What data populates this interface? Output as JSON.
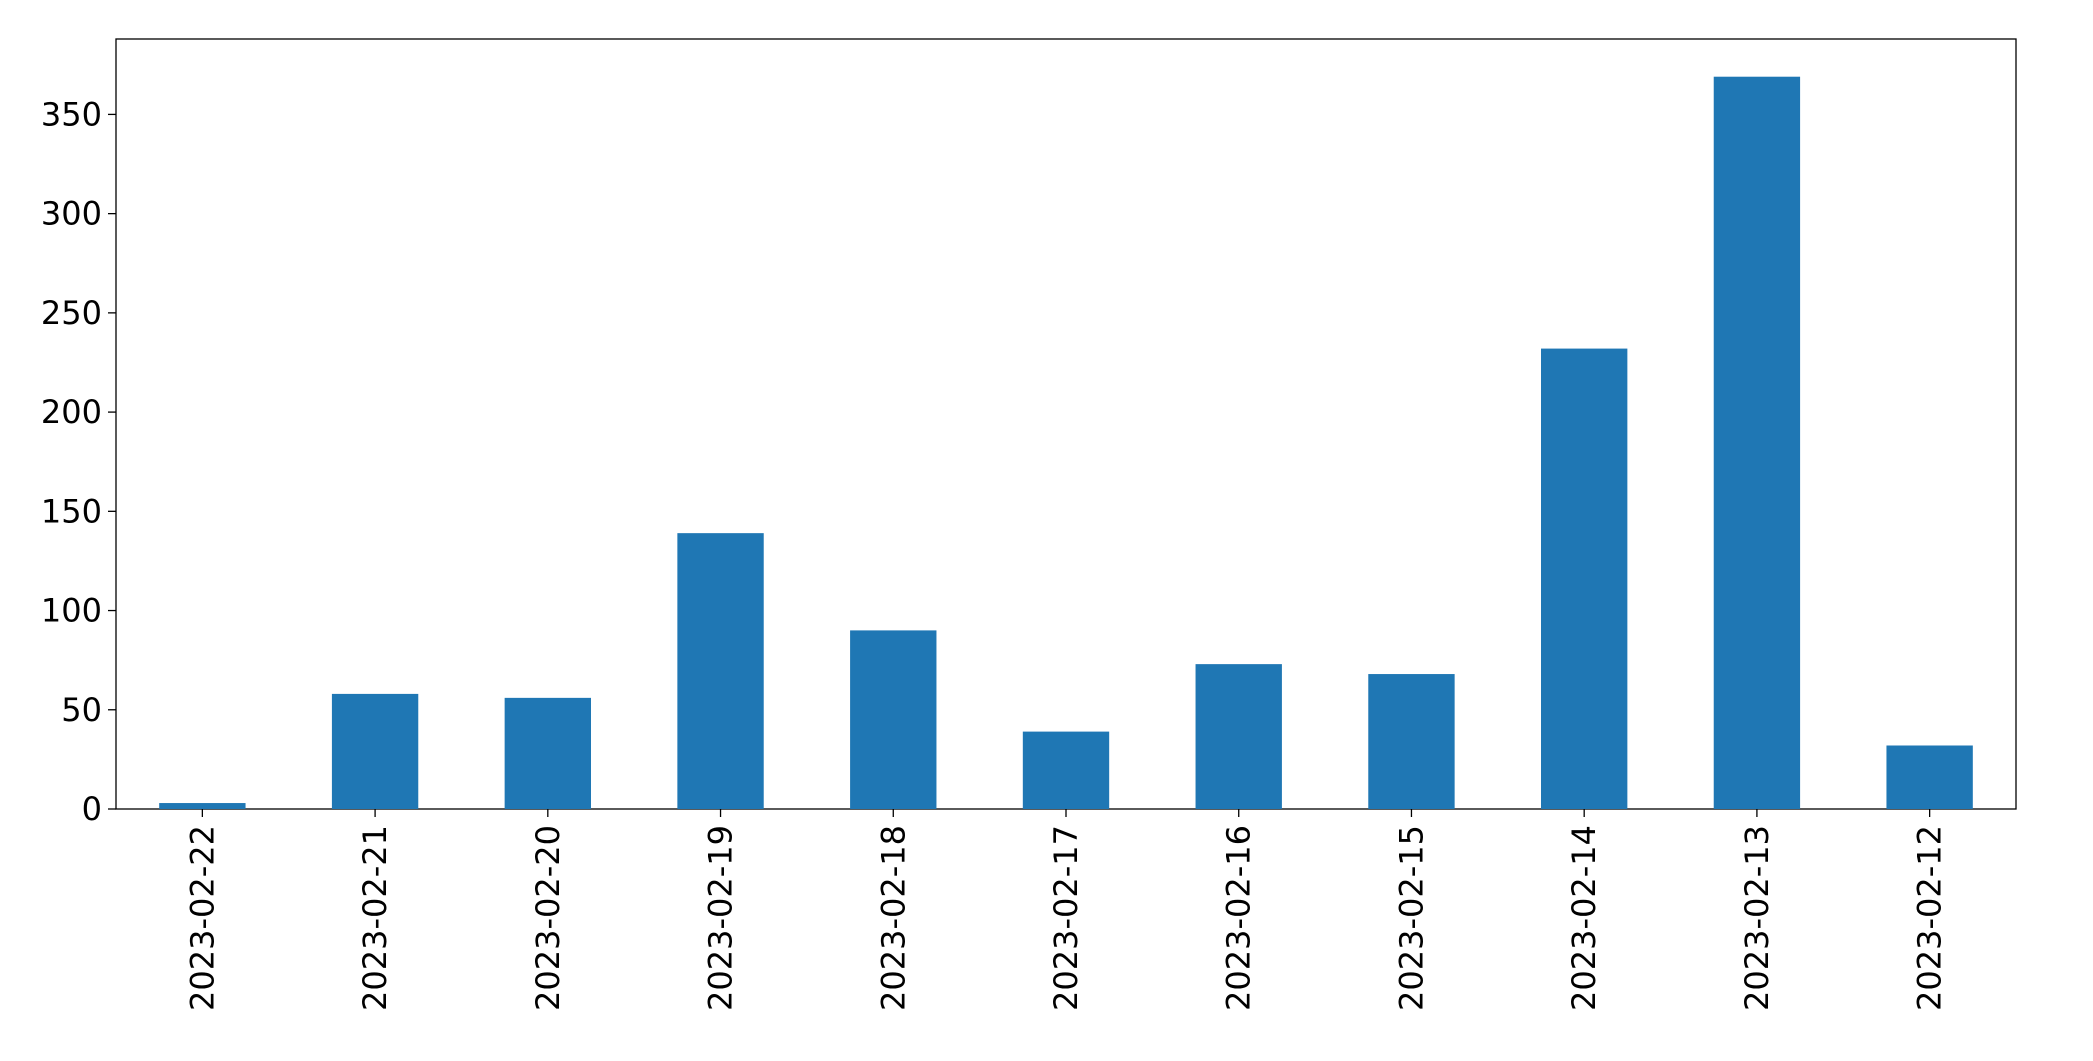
{
  "chart_data": {
    "type": "bar",
    "categories": [
      "2023-02-22",
      "2023-02-21",
      "2023-02-20",
      "2023-02-19",
      "2023-02-18",
      "2023-02-17",
      "2023-02-16",
      "2023-02-15",
      "2023-02-14",
      "2023-02-13",
      "2023-02-12"
    ],
    "values": [
      3,
      58,
      56,
      139,
      90,
      39,
      73,
      68,
      232,
      369,
      32
    ],
    "color": "#1f77b4",
    "ylim": [
      0,
      388
    ],
    "yticks": [
      0,
      50,
      100,
      150,
      200,
      250,
      300,
      350
    ],
    "grid": false
  }
}
